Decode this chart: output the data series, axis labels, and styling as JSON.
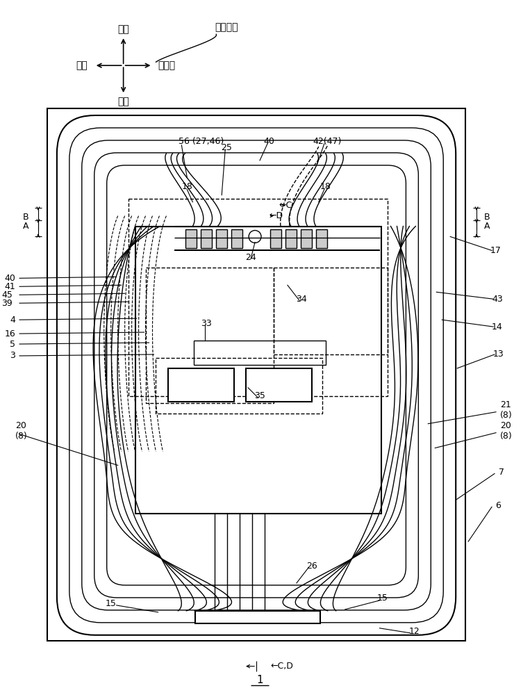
{
  "bg_color": "#ffffff",
  "line_color": "#000000",
  "fig_width": 7.4,
  "fig_height": 10.0,
  "dpi": 100,
  "labels": {
    "qianside": "前侧",
    "houside": "后侧",
    "yiside": "一侧",
    "lingyiside": "另一侧",
    "kuandudir": "宽度方向",
    "num1": "1",
    "num3": "3",
    "num4": "4",
    "num5": "5",
    "num6": "6",
    "num7": "7",
    "num12": "12",
    "num13": "13",
    "num14": "14",
    "num15a": "15",
    "num15b": "15",
    "num15c": "15",
    "num16": "16",
    "num17": "17",
    "num18a": "18",
    "num18b": "18",
    "num20a": "20\n(8)",
    "num20b": "20\n(8)",
    "num21": "21\n(8)",
    "num24": "24",
    "num25": "25",
    "num26": "26",
    "num33": "33",
    "num34": "34",
    "num35": "35",
    "num39": "39",
    "num40a": "40",
    "num40b": "40",
    "num41": "41",
    "num42": "42(47)",
    "num43": "43",
    "num45": "45",
    "num56": "56 (27,46)",
    "labelA": "A",
    "labelB": "B",
    "labelA2": "A",
    "labelB2": "B",
    "labelC": "←C",
    "labelD": "←D",
    "labelCD": "←C,D"
  }
}
